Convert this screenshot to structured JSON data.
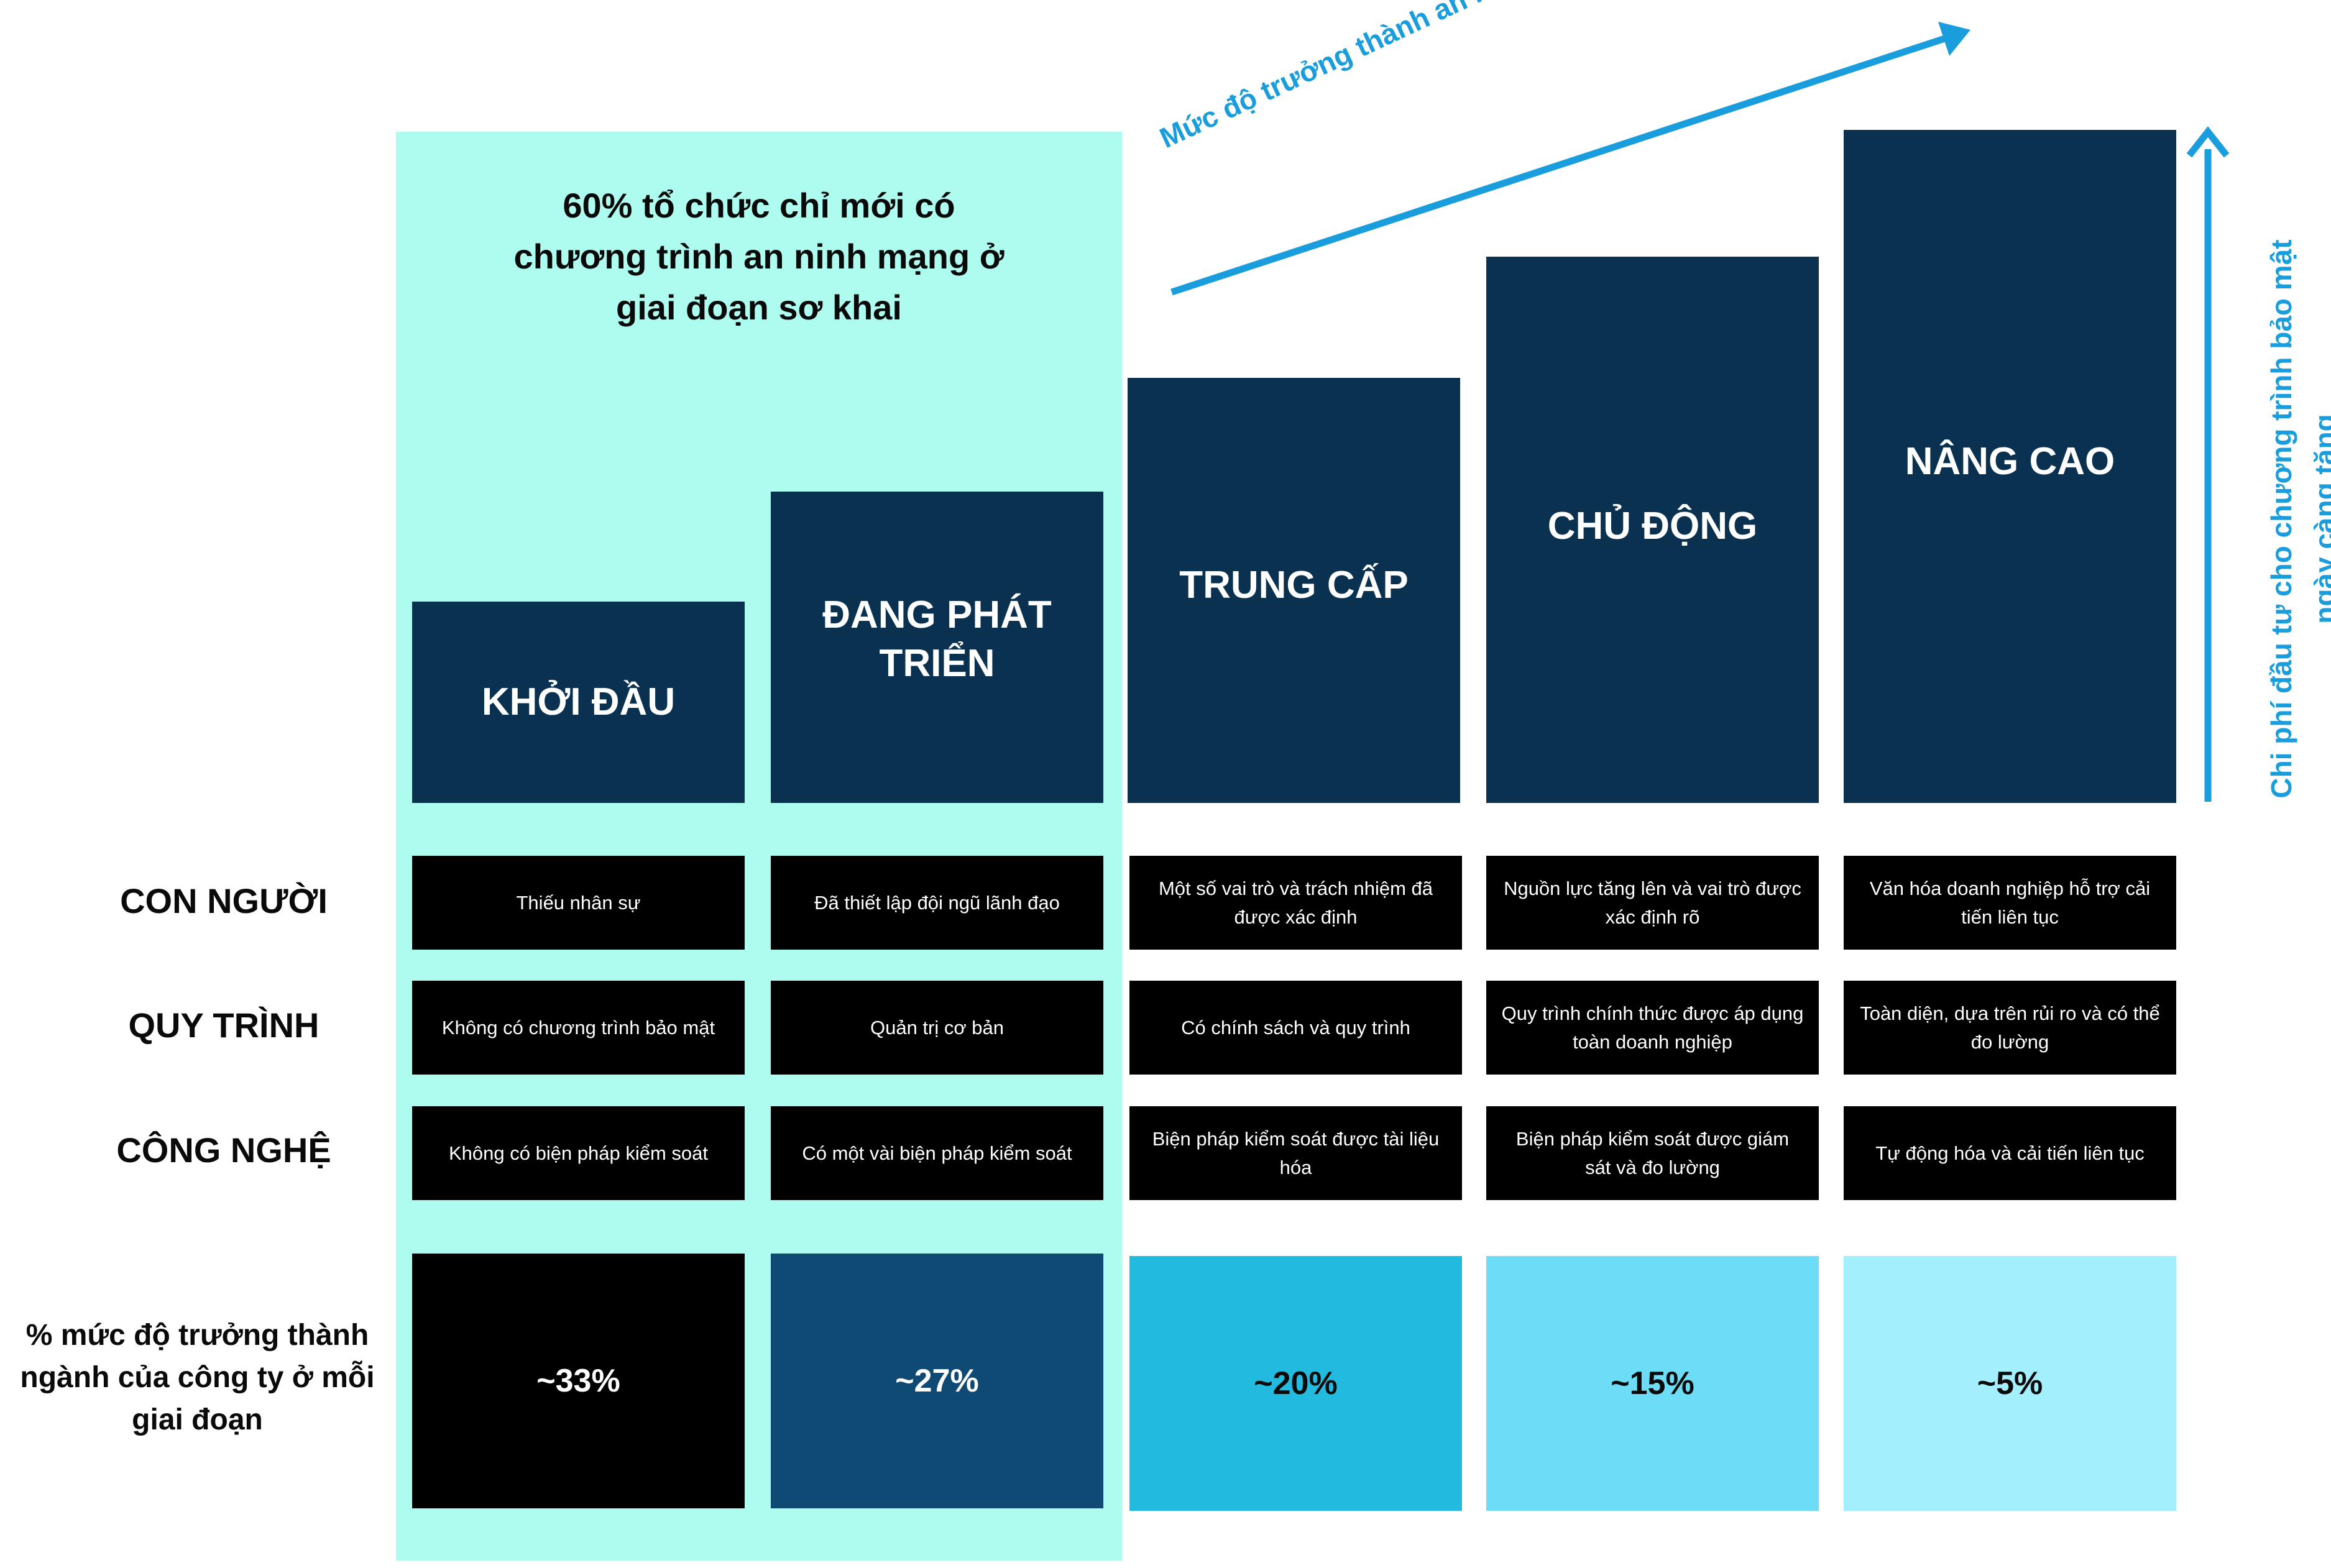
{
  "headline": {
    "line1": "60% tổ chức chỉ mới có",
    "line2": "chương trình an ninh mạng ở",
    "line3": "giai đoạn sơ khai"
  },
  "maturity_arrow_label": "Mức độ trưởng thành an ninh mạng ngày càng tăng",
  "investment_arrow_label": {
    "line1": "Chi phí đầu tư cho chương trình bảo mật",
    "line2": "ngày càng tăng"
  },
  "stages": [
    {
      "name": "KHỞI ĐẦU"
    },
    {
      "name_line1": "ĐANG PHÁT",
      "name_line2": "TRIỂN"
    },
    {
      "name": "TRUNG CẤP"
    },
    {
      "name": "CHỦ ĐỘNG"
    },
    {
      "name": "NÂNG CAO"
    }
  ],
  "rows": {
    "people": {
      "label": "CON NGƯỜI",
      "cells": [
        "Thiếu nhân sự",
        "Đã thiết lập đội ngũ lãnh đạo",
        "Một số vai trò và trách nhiệm đã được xác định",
        "Nguồn lực tăng lên và vai trò được xác định rõ",
        "Văn hóa doanh nghiệp hỗ trợ cải tiến liên tục"
      ]
    },
    "process": {
      "label": "QUY TRÌNH",
      "cells": [
        "Không có chương trình bảo mật",
        "Quản trị cơ bản",
        "Có chính sách và quy trình",
        "Quy trình chính thức được áp dụng toàn doanh nghiệp",
        "Toàn diện, dựa trên rủi ro và có thể đo lường"
      ]
    },
    "technology": {
      "label": "CÔNG NGHỆ",
      "cells": [
        "Không có biện pháp kiểm soát",
        "Có một vài biện pháp kiểm soát",
        "Biện pháp kiểm soát được tài liệu hóa",
        "Biện pháp kiểm soát được giám sát và đo lường",
        "Tự động hóa và cải tiến liên tục"
      ]
    }
  },
  "percent_row": {
    "label_line1": "% mức độ trưởng thành",
    "label_line2": "ngành của công ty ở mỗi",
    "label_line3": "giai đoạn",
    "values": [
      "~33%",
      "~27%",
      "~20%",
      "~15%",
      "~5%"
    ]
  },
  "colors": {
    "highlight_panel": "#adfcef",
    "stage_box": "#0b3150",
    "cell": "#000000",
    "arrow": "#1a9ddc",
    "percent_boxes": [
      "#000000",
      "#0e4a73",
      "#22bbdf",
      "#6ddcf6",
      "#a4effd"
    ]
  }
}
